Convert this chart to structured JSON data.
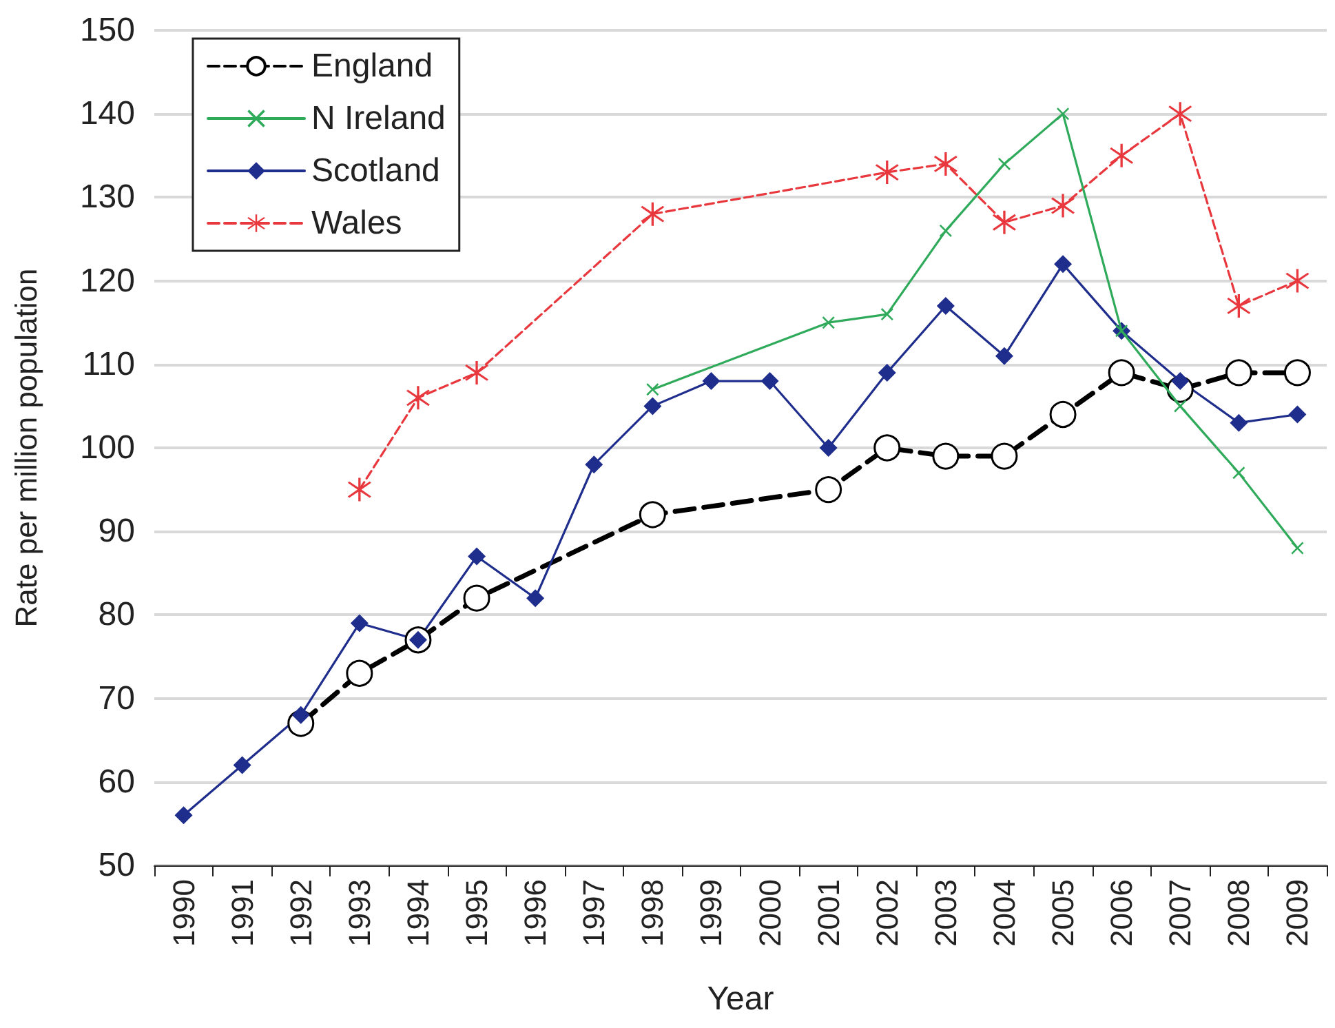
{
  "chart_data": {
    "type": "line",
    "xlabel": "Year",
    "ylabel": "Rate per million population",
    "categories": [
      "1990",
      "1991",
      "1992",
      "1993",
      "1994",
      "1995",
      "1996",
      "1997",
      "1998",
      "1999",
      "2000",
      "2001",
      "2002",
      "2003",
      "2004",
      "2005",
      "2006",
      "2007",
      "2008",
      "2009"
    ],
    "series": [
      {
        "name": "England",
        "color": "#000000",
        "marker": "circle",
        "line_style": "dashed",
        "values": [
          null,
          null,
          67,
          73,
          77,
          82,
          null,
          null,
          92,
          null,
          null,
          95,
          100,
          99,
          99,
          104,
          109,
          107,
          109,
          109
        ]
      },
      {
        "name": "N Ireland",
        "color": "#2eaa5a",
        "marker": "cross",
        "line_style": "solid",
        "values": [
          null,
          null,
          null,
          null,
          null,
          null,
          null,
          null,
          107,
          null,
          null,
          115,
          116,
          126,
          134,
          140,
          114,
          105,
          97,
          88
        ]
      },
      {
        "name": "Scotland",
        "color": "#1f2d8c",
        "marker": "diamond",
        "line_style": "solid",
        "values": [
          56,
          62,
          68,
          79,
          77,
          87,
          82,
          98,
          105,
          108,
          108,
          100,
          109,
          117,
          111,
          122,
          114,
          108,
          103,
          104
        ]
      },
      {
        "name": "Wales",
        "color": "#e8383d",
        "marker": "star",
        "line_style": "dashed",
        "values": [
          null,
          null,
          null,
          95,
          106,
          109,
          null,
          null,
          128,
          null,
          null,
          null,
          133,
          134,
          127,
          129,
          135,
          140,
          117,
          120
        ]
      }
    ],
    "ylim": [
      50,
      150
    ],
    "yticks": [
      50,
      60,
      70,
      80,
      90,
      100,
      110,
      120,
      130,
      140,
      150
    ],
    "grid": "y",
    "legend": "top left"
  }
}
